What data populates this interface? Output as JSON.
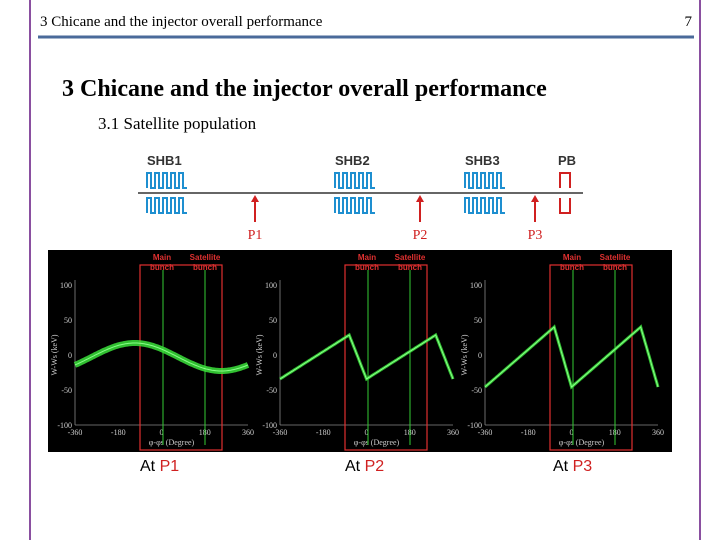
{
  "header": {
    "title": "3 Chicane and the injector overall performance",
    "page_number": "7"
  },
  "heading": "3 Chicane and the injector overall performance",
  "subheading": "3.1 Satellite population",
  "diagram": {
    "cavities": [
      "SHB1",
      "SHB2",
      "SHB3",
      "PB"
    ],
    "points": [
      "P1",
      "P2",
      "P3"
    ]
  },
  "panels": [
    {
      "main_label": [
        "Main",
        "bunch"
      ],
      "satellite_label": [
        "Satellite",
        "bunch"
      ],
      "y_label": "W-Ws (keV)",
      "x_label": "φ-φs (Degree)",
      "y_ticks": [
        100,
        50,
        0,
        -50,
        -100
      ],
      "x_ticks": [
        -360,
        -180,
        0,
        180,
        360
      ],
      "caption_prefix": "At",
      "caption_point": "P1"
    },
    {
      "main_label": [
        "Main",
        "bunch"
      ],
      "satellite_label": [
        "Satellite",
        "bunch"
      ],
      "y_label": "W-Ws (keV)",
      "x_label": "φ-φs (Degree)",
      "y_ticks": [
        100,
        50,
        0,
        -50,
        -100
      ],
      "x_ticks": [
        -360,
        -180,
        0,
        180,
        360
      ],
      "caption_prefix": "At",
      "caption_point": "P2"
    },
    {
      "main_label": [
        "Main",
        "bunch"
      ],
      "satellite_label": [
        "Satellite",
        "bunch"
      ],
      "y_label": "W-Ws (keV)",
      "x_label": "φ-φs (Degree)",
      "y_ticks": [
        100,
        50,
        0,
        -50,
        -100
      ],
      "x_ticks": [
        -360,
        -180,
        0,
        180,
        360
      ],
      "caption_prefix": "At",
      "caption_point": "P3"
    }
  ]
}
